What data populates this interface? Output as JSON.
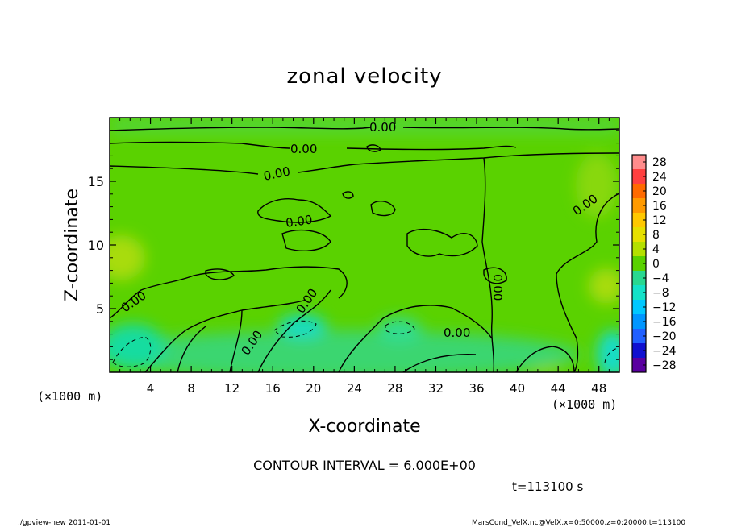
{
  "chart_data": {
    "type": "heatmap",
    "title": "zonal velocity",
    "xlabel": "X-coordinate",
    "ylabel": "Z-coordinate",
    "x_unit_label": "(×1000 m)",
    "y_unit_label": "(×1000 m)",
    "xlim": [
      0,
      50
    ],
    "ylim": [
      0,
      20
    ],
    "x_ticks": [
      4,
      8,
      12,
      16,
      20,
      24,
      28,
      32,
      36,
      40,
      44,
      48
    ],
    "y_ticks": [
      5,
      10,
      15
    ],
    "colorbar": {
      "levels": [
        28,
        24,
        20,
        16,
        12,
        8,
        4,
        0,
        -4,
        -8,
        -12,
        -16,
        -20,
        -24,
        -28
      ],
      "tick_labels": [
        "28",
        "24",
        "20",
        "16",
        "12",
        "8",
        "4",
        "0",
        "−4",
        "−8",
        "−12",
        "−16",
        "−20",
        "−24",
        "−28"
      ],
      "colors": [
        "#ff8c8c",
        "#ff4040",
        "#ff6a00",
        "#ff9a00",
        "#ffc800",
        "#e6e000",
        "#b4e000",
        "#5ad200",
        "#28d890",
        "#14e2c8",
        "#00c8ff",
        "#0096ff",
        "#2060ff",
        "#1010d0",
        "#5a00a0"
      ]
    },
    "contour_labels": [
      "0.00",
      "0.00",
      "0.00",
      "0.00",
      "0.00",
      "0.00",
      "0.00",
      "0.00",
      "0.00"
    ],
    "contour_interval_text": "CONTOUR INTERVAL = 6.000E+00",
    "time_text": "t=113100 s"
  },
  "footer": {
    "left": "./gpview-new  2011-01-01",
    "right": "MarsCond_VelX.nc@VelX,x=0:50000,z=0:20000,t=113100"
  }
}
